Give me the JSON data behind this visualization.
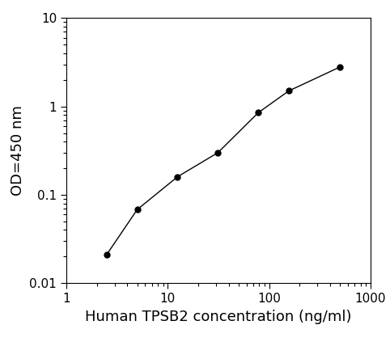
{
  "x": [
    2.5,
    5,
    12.5,
    31.25,
    78.125,
    156.25,
    500
  ],
  "y": [
    0.021,
    0.068,
    0.16,
    0.3,
    0.85,
    1.5,
    2.8
  ],
  "xlabel": "Human TPSB2 concentration (ng/ml)",
  "ylabel": "OD=450 nm",
  "xlim": [
    1,
    1000
  ],
  "ylim": [
    0.01,
    10
  ],
  "line_color": "#000000",
  "marker_color": "#000000",
  "marker_size": 5,
  "line_width": 1.0,
  "background_color": "#ffffff",
  "xlabel_fontsize": 13,
  "ylabel_fontsize": 13,
  "tick_fontsize": 11,
  "font_family": "Arial"
}
